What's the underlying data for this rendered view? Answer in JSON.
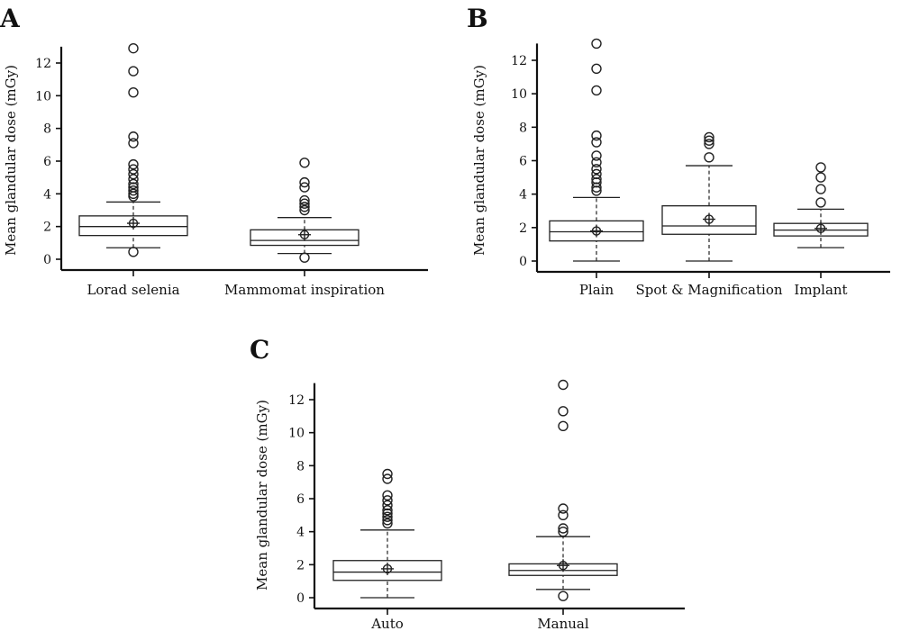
{
  "chart_data": [
    {
      "panel": "A",
      "type": "box",
      "ylabel": "Mean glandular dose (mGy)",
      "yticks": [
        0,
        2,
        4,
        6,
        8,
        10,
        12
      ],
      "ylim": [
        0,
        13
      ],
      "categories": [
        "Lorad selenia",
        "Mammomat inspiration"
      ],
      "boxes": [
        {
          "whisker_low": 0.7,
          "q1": 1.45,
          "median": 2.0,
          "q3": 2.65,
          "whisker_high": 3.5,
          "mean": 2.2,
          "outliers": [
            0.45,
            3.85,
            4.0,
            4.2,
            4.4,
            4.6,
            4.9,
            5.2,
            5.5,
            5.8,
            7.1,
            7.5,
            10.2,
            11.5,
            12.9
          ]
        },
        {
          "whisker_low": 0.35,
          "q1": 0.85,
          "median": 1.15,
          "q3": 1.8,
          "whisker_high": 2.55,
          "mean": 1.5,
          "outliers": [
            0.1,
            3.0,
            3.2,
            3.4,
            3.6,
            4.4,
            4.7,
            5.9
          ]
        }
      ]
    },
    {
      "panel": "B",
      "type": "box",
      "ylabel": "Mean glandular dose (mGy)",
      "yticks": [
        0,
        2,
        4,
        6,
        8,
        10,
        12
      ],
      "ylim": [
        0,
        13
      ],
      "categories": [
        "Plain",
        "Spot & Magnification",
        "Implant"
      ],
      "boxes": [
        {
          "whisker_low": 0.0,
          "q1": 1.2,
          "median": 1.75,
          "q3": 2.4,
          "whisker_high": 3.8,
          "mean": 1.8,
          "outliers": [
            4.2,
            4.4,
            4.7,
            4.9,
            5.2,
            5.5,
            5.9,
            6.3,
            7.1,
            7.5,
            10.2,
            11.5,
            13.0
          ]
        },
        {
          "whisker_low": 0.0,
          "q1": 1.6,
          "median": 2.1,
          "q3": 3.3,
          "whisker_high": 5.7,
          "mean": 2.5,
          "outliers": [
            6.2,
            7.0,
            7.2,
            7.4
          ]
        },
        {
          "whisker_low": 0.8,
          "q1": 1.5,
          "median": 1.85,
          "q3": 2.25,
          "whisker_high": 3.1,
          "mean": 1.95,
          "outliers": [
            3.5,
            4.3,
            5.0,
            5.6
          ]
        }
      ]
    },
    {
      "panel": "C",
      "type": "box",
      "ylabel": "Mean glandular dose (mGy)",
      "yticks": [
        0,
        2,
        4,
        6,
        8,
        10,
        12
      ],
      "ylim": [
        0,
        13
      ],
      "categories": [
        "Auto",
        "Manual"
      ],
      "boxes": [
        {
          "whisker_low": 0.0,
          "q1": 1.05,
          "median": 1.55,
          "q3": 2.25,
          "whisker_high": 4.1,
          "mean": 1.75,
          "outliers": [
            4.5,
            4.7,
            4.9,
            5.1,
            5.3,
            5.6,
            5.9,
            6.2,
            7.2,
            7.5
          ]
        },
        {
          "whisker_low": 0.5,
          "q1": 1.35,
          "median": 1.65,
          "q3": 2.05,
          "whisker_high": 3.7,
          "mean": 1.95,
          "outliers": [
            0.1,
            4.0,
            4.2,
            5.0,
            5.4,
            10.4,
            11.3,
            12.9
          ]
        }
      ]
    }
  ]
}
